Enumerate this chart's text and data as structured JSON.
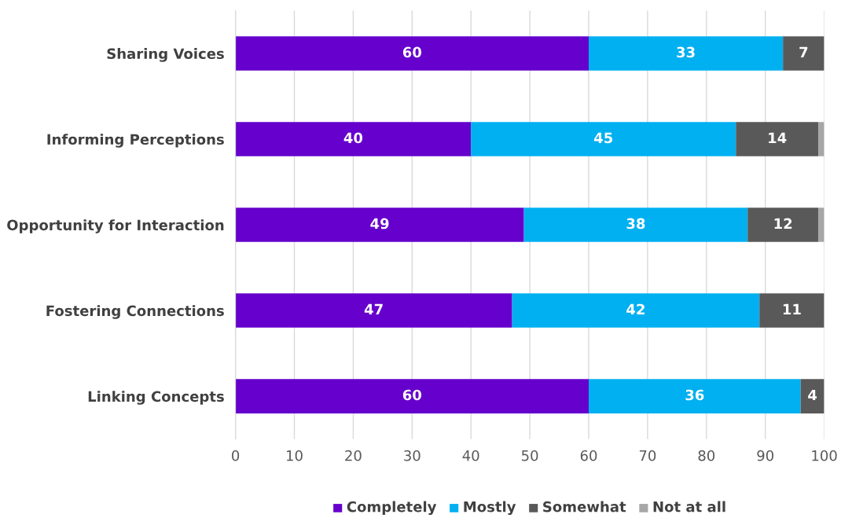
{
  "chart_data": {
    "type": "bar",
    "orientation": "horizontal",
    "stacked": true,
    "categories": [
      "Sharing Voices",
      "Informing Perceptions",
      "Opportunity for Interaction",
      "Fostering Connections",
      "Linking Concepts"
    ],
    "series": [
      {
        "name": "Completely",
        "color": "#6600cc",
        "values": [
          60,
          40,
          49,
          47,
          60
        ],
        "value_labels": [
          "60",
          "40",
          "49",
          "47",
          "60"
        ]
      },
      {
        "name": "Mostly",
        "color": "#00b0f0",
        "values": [
          33,
          45,
          38,
          42,
          36
        ],
        "value_labels": [
          "33",
          "45",
          "38",
          "42",
          "36"
        ]
      },
      {
        "name": "Somewhat",
        "color": "#595959",
        "values": [
          7,
          14,
          12,
          11,
          4
        ],
        "value_labels": [
          "7",
          "14",
          "12",
          "11",
          "4"
        ]
      },
      {
        "name": "Not at all",
        "color": "#a6a6a6",
        "values": [
          0,
          1,
          1,
          0,
          0
        ],
        "value_labels": [
          null,
          null,
          null,
          null,
          null
        ]
      }
    ],
    "xlim": [
      0,
      100
    ],
    "xticks": [
      0,
      10,
      20,
      30,
      40,
      50,
      60,
      70,
      80,
      90,
      100
    ],
    "grid": "x",
    "legend": "bottom"
  }
}
